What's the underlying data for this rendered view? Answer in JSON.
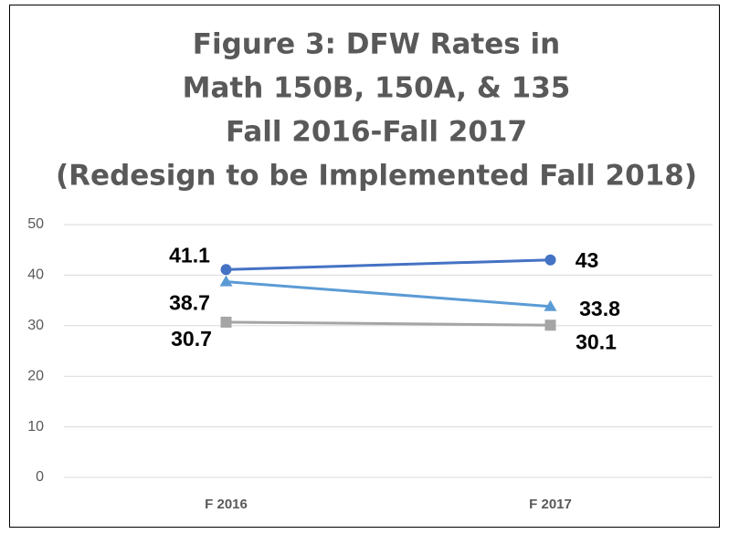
{
  "chart_data": {
    "type": "line",
    "title": [
      "Figure 3: DFW Rates in",
      "Math 150B, 150A, & 135",
      "Fall 2016-Fall 2017",
      "(Redesign to be Implemented Fall 2018)"
    ],
    "categories": [
      "F 2016",
      "F 2017"
    ],
    "series": [
      {
        "color": "#4472c4",
        "marker": "circle",
        "values": [
          41.1,
          43
        ]
      },
      {
        "color": "#5b9bd5",
        "marker": "triangle",
        "values": [
          38.7,
          33.8
        ]
      },
      {
        "color": "#a5a5a5",
        "marker": "square",
        "values": [
          30.7,
          30.1
        ]
      }
    ],
    "ylim": [
      0,
      50
    ],
    "yticks": [
      0,
      10,
      20,
      30,
      40,
      50
    ],
    "grid": true
  }
}
